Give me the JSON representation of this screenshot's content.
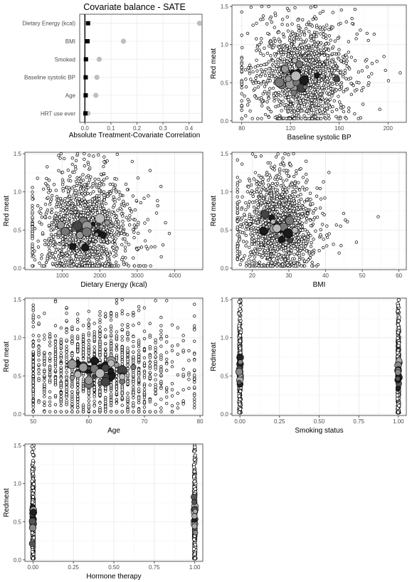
{
  "chart_data": [
    {
      "type": "scatter",
      "title": "Covariate balance - SATE",
      "xlabel": "Absolute Treatment-Covariate Correlation",
      "ylabel": "",
      "xlim": [
        -0.02,
        0.45
      ],
      "xticks": [
        0.0,
        0.1,
        0.2,
        0.3,
        0.4
      ],
      "xtick_labels": [
        "0.0",
        "0.1",
        "0.2",
        "0.3",
        "0.4"
      ],
      "categories": [
        "Dietary Energy (kcal)",
        "BMI",
        "Smoked",
        "Baseline systolic BP",
        "Age",
        "HRT use ever"
      ],
      "series": [
        {
          "marker": "square",
          "color": "#000000",
          "values": [
            0.012,
            0.01,
            0.004,
            0.003,
            0.003,
            0.002
          ]
        },
        {
          "marker": "circle",
          "color": "#bdbdbd",
          "values": [
            0.44,
            0.148,
            0.055,
            0.046,
            0.042,
            0.012
          ]
        }
      ],
      "grid": true
    },
    {
      "type": "scatter",
      "xlabel": "Baseline systolic BP",
      "ylabel": "Red meat",
      "xlim": [
        72,
        215
      ],
      "ylim": [
        -0.02,
        1.52
      ],
      "xticks": [
        80,
        120,
        160,
        200
      ],
      "xtick_labels": [
        "80",
        "120",
        "160",
        "200"
      ],
      "yticks": [
        0,
        0.5,
        1,
        1.5
      ],
      "ytick_labels": [
        "0.0",
        "0.5",
        "1.0",
        "1.5"
      ],
      "mode": "continuous",
      "center": [
        130,
        0.58
      ],
      "spread": [
        17,
        0.32
      ],
      "xrange": [
        80,
        210
      ],
      "n": 1400,
      "grid": true
    },
    {
      "type": "scatter",
      "xlabel": "Dietary Energy (kcal)",
      "ylabel": "Red meat",
      "xlim": [
        0,
        4750
      ],
      "ylim": [
        -0.02,
        1.52
      ],
      "xticks": [
        1000,
        2000,
        3000,
        4000
      ],
      "xtick_labels": [
        "1000",
        "2000",
        "3000",
        "4000"
      ],
      "yticks": [
        0,
        0.5,
        1,
        1.5
      ],
      "ytick_labels": [
        "0.0",
        "0.5",
        "1.0",
        "1.5"
      ],
      "mode": "continuous",
      "center": [
        1600,
        0.5
      ],
      "spread": [
        550,
        0.32
      ],
      "xrange": [
        200,
        4500
      ],
      "n": 1400,
      "grid": true
    },
    {
      "type": "scatter",
      "xlabel": "BMI",
      "ylabel": "Red meat",
      "xlim": [
        14.5,
        62
      ],
      "ylim": [
        -0.02,
        1.52
      ],
      "xticks": [
        20,
        30,
        40,
        50,
        60
      ],
      "xtick_labels": [
        "20",
        "30",
        "40",
        "50",
        "60"
      ],
      "yticks": [
        0,
        0.5,
        1,
        1.5
      ],
      "ytick_labels": [
        "0.0",
        "0.5",
        "1.0",
        "1.5"
      ],
      "mode": "continuous",
      "center": [
        27,
        0.55
      ],
      "spread": [
        4.5,
        0.32
      ],
      "xrange": [
        16,
        61
      ],
      "n": 1400,
      "grid": true
    },
    {
      "type": "scatter",
      "xlabel": "Age",
      "ylabel": "Red meat",
      "xlim": [
        48.5,
        80.5
      ],
      "ylim": [
        -0.02,
        1.52
      ],
      "xticks": [
        50,
        60,
        70,
        80
      ],
      "xtick_labels": [
        "50",
        "60",
        "70",
        "80"
      ],
      "yticks": [
        0,
        0.5,
        1,
        1.5
      ],
      "ytick_labels": [
        "0.0",
        "0.5",
        "1.0",
        "1.5"
      ],
      "mode": "discrete-x",
      "center": [
        62,
        0.55
      ],
      "spread": [
        6,
        0.32
      ],
      "xrange": [
        50,
        79
      ],
      "n": 1400,
      "grid": true
    },
    {
      "type": "scatter",
      "xlabel": "Smoking status",
      "ylabel": "Redmeat",
      "xlim": [
        -0.05,
        1.05
      ],
      "ylim": [
        -0.02,
        1.52
      ],
      "xticks": [
        0,
        0.25,
        0.5,
        0.75,
        1
      ],
      "xtick_labels": [
        "0.00",
        "0.25",
        "0.50",
        "0.75",
        "1.00"
      ],
      "yticks": [
        0,
        0.5,
        1,
        1.5
      ],
      "ytick_labels": [
        "0.0",
        "0.5",
        "1.0",
        "1.5"
      ],
      "mode": "binary",
      "center": [
        0.5,
        0.55
      ],
      "spread": [
        0,
        0.3
      ],
      "n": 900,
      "grid": true
    },
    {
      "type": "scatter",
      "xlabel": "Hormone therapy",
      "ylabel": "Redmeat",
      "xlim": [
        -0.05,
        1.05
      ],
      "ylim": [
        -0.02,
        1.52
      ],
      "xticks": [
        0,
        0.25,
        0.5,
        0.75,
        1
      ],
      "xtick_labels": [
        "0.00",
        "0.25",
        "0.50",
        "0.75",
        "1.00"
      ],
      "yticks": [
        0,
        0.5,
        1,
        1.5
      ],
      "ytick_labels": [
        "0.0",
        "0.5",
        "1.0",
        "1.5"
      ],
      "mode": "binary",
      "center": [
        0.5,
        0.52
      ],
      "spread": [
        0,
        0.3
      ],
      "n": 900,
      "grid": true
    }
  ]
}
